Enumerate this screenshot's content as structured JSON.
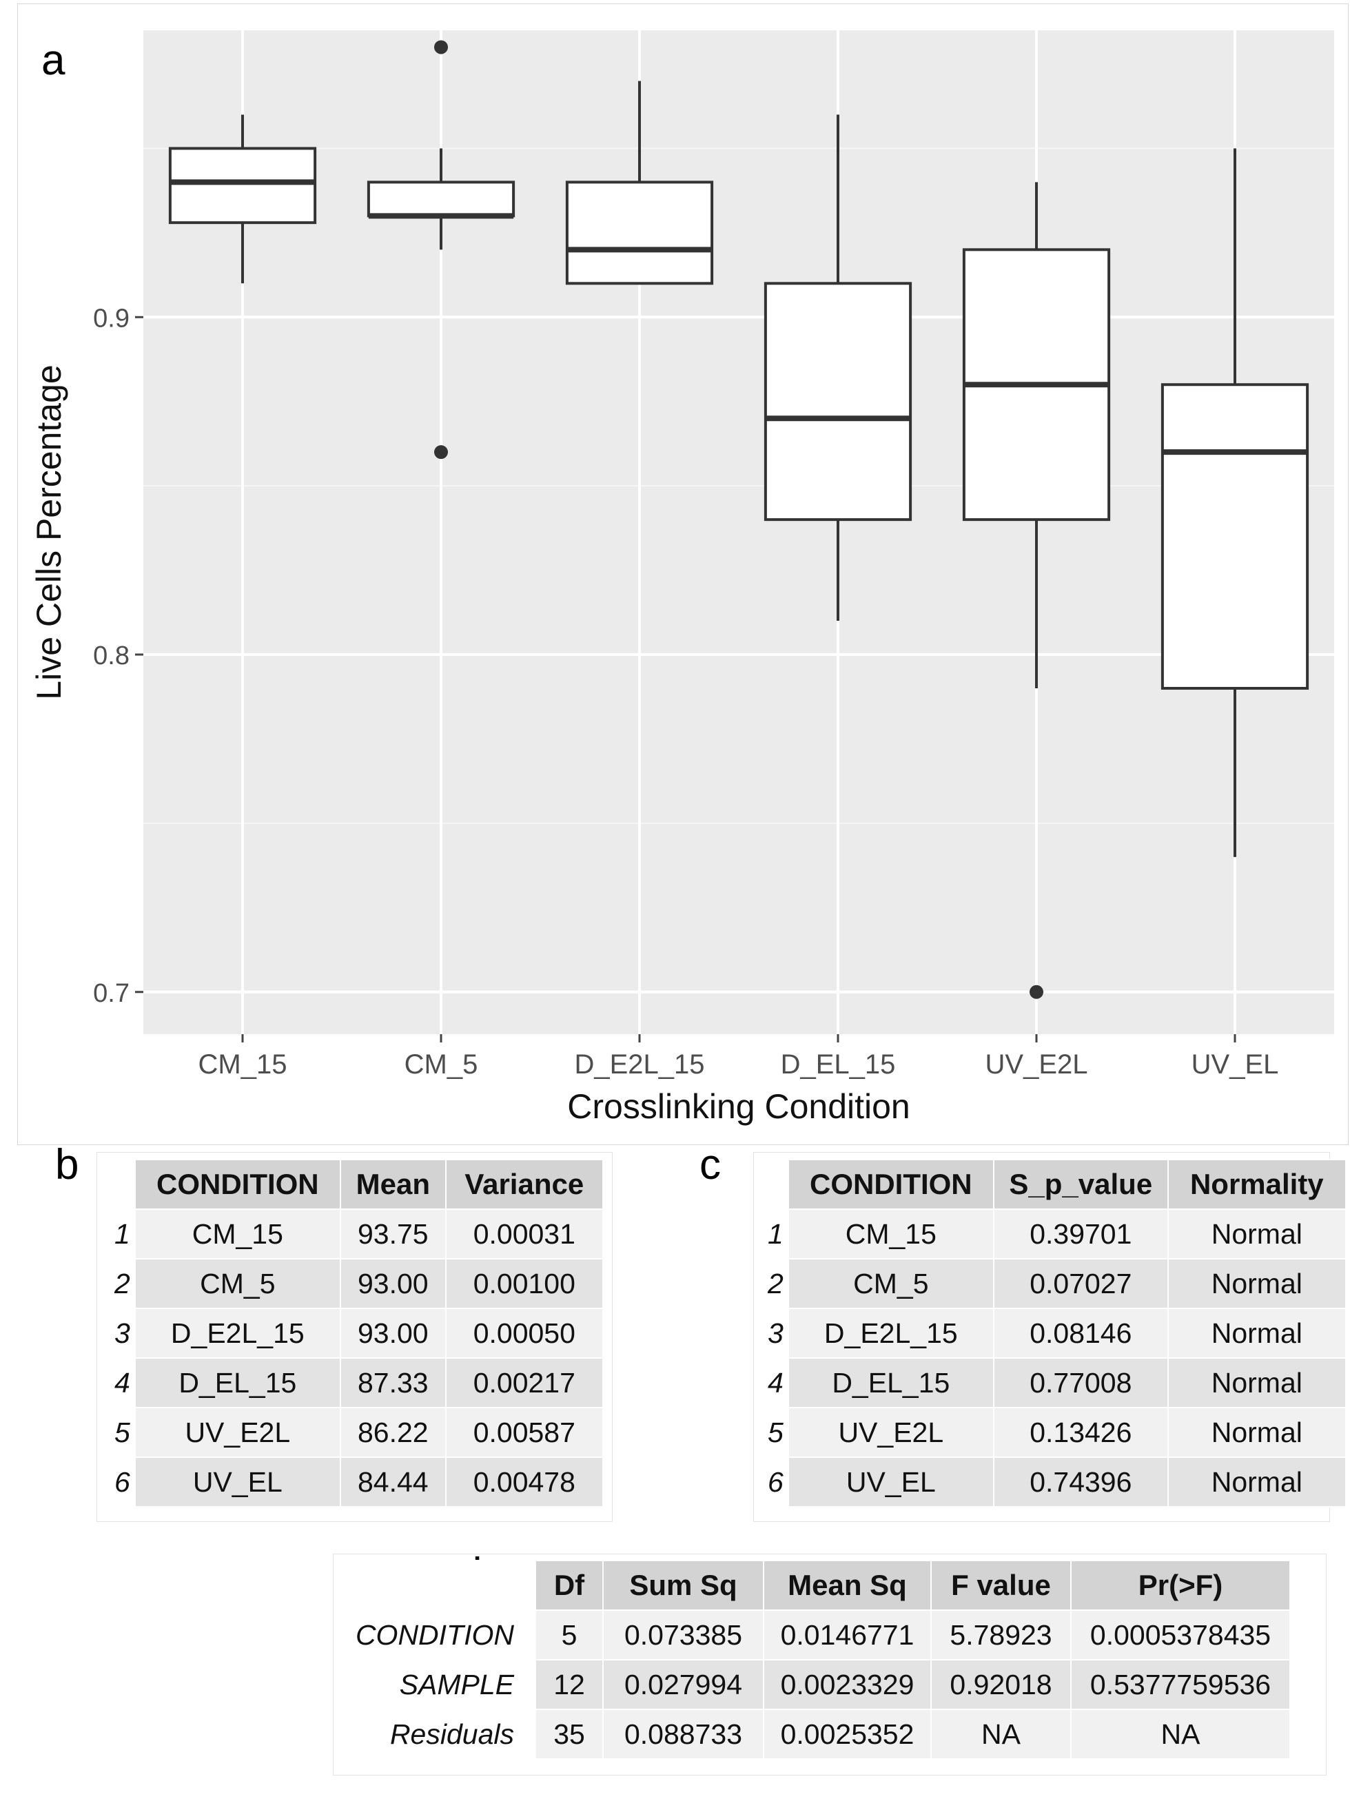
{
  "panels": {
    "a": "a",
    "b": "b",
    "c": "c",
    "d": "d"
  },
  "chart_data": {
    "type": "boxplot",
    "title": "",
    "xlabel": "Crosslinking Condition",
    "ylabel": "Live Cells Percentage",
    "ylim": [
      0.6875,
      0.985
    ],
    "yticks": [
      0.7,
      0.8,
      0.9
    ],
    "ytick_labels": [
      "0.7",
      "0.8",
      "0.9"
    ],
    "grid": true,
    "categories": [
      "CM_15",
      "CM_5",
      "D_E2L_15",
      "D_EL_15",
      "UV_E2L",
      "UV_EL"
    ],
    "boxes": [
      {
        "name": "CM_15",
        "whisker_low": 0.91,
        "q1": 0.928,
        "median": 0.94,
        "q3": 0.95,
        "whisker_high": 0.96,
        "outliers": []
      },
      {
        "name": "CM_5",
        "whisker_low": 0.92,
        "q1": 0.93,
        "median": 0.93,
        "q3": 0.94,
        "whisker_high": 0.95,
        "outliers": [
          0.98,
          0.86
        ]
      },
      {
        "name": "D_E2L_15",
        "whisker_low": 0.91,
        "q1": 0.91,
        "median": 0.92,
        "q3": 0.94,
        "whisker_high": 0.97,
        "outliers": []
      },
      {
        "name": "D_EL_15",
        "whisker_low": 0.81,
        "q1": 0.84,
        "median": 0.87,
        "q3": 0.91,
        "whisker_high": 0.96,
        "outliers": []
      },
      {
        "name": "UV_E2L",
        "whisker_low": 0.79,
        "q1": 0.84,
        "median": 0.88,
        "q3": 0.92,
        "whisker_high": 0.94,
        "outliers": [
          0.7
        ]
      },
      {
        "name": "UV_EL",
        "whisker_low": 0.74,
        "q1": 0.79,
        "median": 0.86,
        "q3": 0.88,
        "whisker_high": 0.95,
        "outliers": []
      }
    ]
  },
  "table_b": {
    "headers": [
      "CONDITION",
      "Mean",
      "Variance"
    ],
    "rows": [
      {
        "idx": "1",
        "condition": "CM_15",
        "mean": "93.75",
        "variance": "0.00031"
      },
      {
        "idx": "2",
        "condition": "CM_5",
        "mean": "93.00",
        "variance": "0.00100"
      },
      {
        "idx": "3",
        "condition": "D_E2L_15",
        "mean": "93.00",
        "variance": "0.00050"
      },
      {
        "idx": "4",
        "condition": "D_EL_15",
        "mean": "87.33",
        "variance": "0.00217"
      },
      {
        "idx": "5",
        "condition": "UV_E2L",
        "mean": "86.22",
        "variance": "0.00587"
      },
      {
        "idx": "6",
        "condition": "UV_EL",
        "mean": "84.44",
        "variance": "0.00478"
      }
    ]
  },
  "table_c": {
    "headers": [
      "CONDITION",
      "S_p_value",
      "Normality"
    ],
    "rows": [
      {
        "idx": "1",
        "condition": "CM_15",
        "p": "0.39701",
        "normality": "Normal"
      },
      {
        "idx": "2",
        "condition": "CM_5",
        "p": "0.07027",
        "normality": "Normal"
      },
      {
        "idx": "3",
        "condition": "D_E2L_15",
        "p": "0.08146",
        "normality": "Normal"
      },
      {
        "idx": "4",
        "condition": "D_EL_15",
        "p": "0.77008",
        "normality": "Normal"
      },
      {
        "idx": "5",
        "condition": "UV_E2L",
        "p": "0.13426",
        "normality": "Normal"
      },
      {
        "idx": "6",
        "condition": "UV_EL",
        "p": "0.74396",
        "normality": "Normal"
      }
    ]
  },
  "table_d": {
    "headers": [
      "Df",
      "Sum Sq",
      "Mean Sq",
      "F value",
      "Pr(>F)"
    ],
    "rows": [
      {
        "name": "CONDITION",
        "df": "5",
        "sumsq": "0.073385",
        "meansq": "0.0146771",
        "f": "5.78923",
        "p": "0.0005378435"
      },
      {
        "name": "SAMPLE",
        "df": "12",
        "sumsq": "0.027994",
        "meansq": "0.0023329",
        "f": "0.92018",
        "p": "0.5377759536"
      },
      {
        "name": "Residuals",
        "df": "35",
        "sumsq": "0.088733",
        "meansq": "0.0025352",
        "f": "NA",
        "p": "NA"
      }
    ]
  }
}
